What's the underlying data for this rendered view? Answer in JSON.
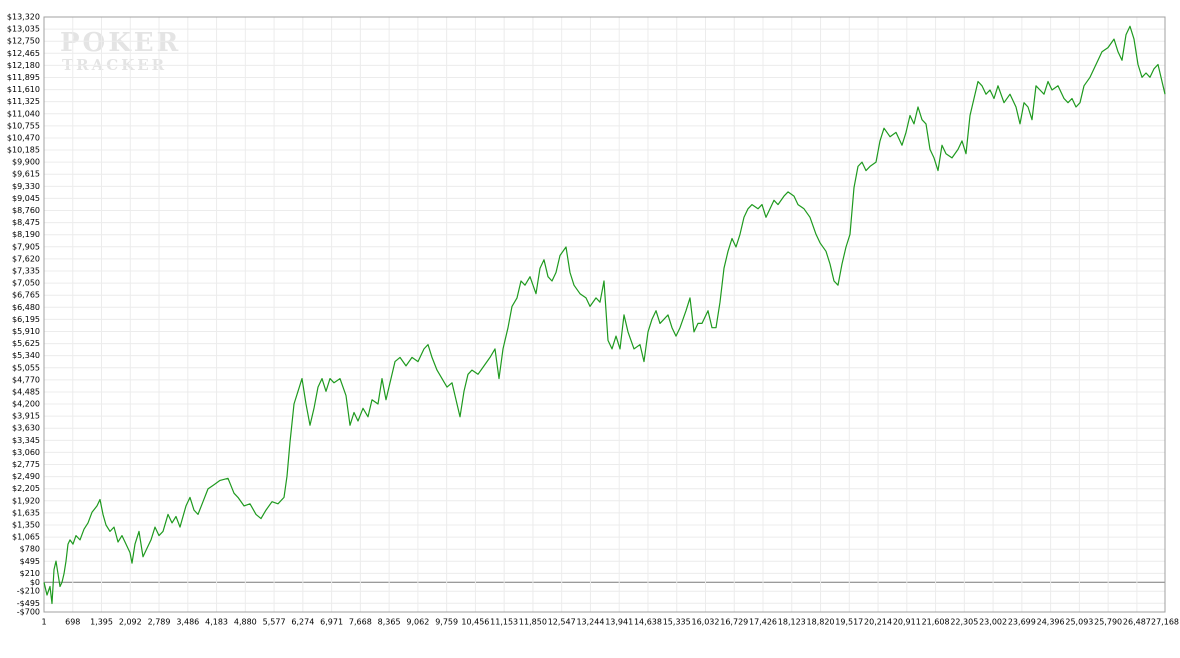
{
  "chart_data": {
    "type": "line",
    "watermark": [
      "POKER",
      "TRACKER"
    ],
    "color": "#1f9a1f",
    "grid": true,
    "xlim": [
      1,
      27168
    ],
    "ylim": [
      -700,
      13320
    ],
    "xticks": [
      1,
      698,
      {
        "value": 1395,
        "label": "1,395"
      },
      {
        "value": 2092,
        "label": "2,092"
      },
      {
        "value": 2789,
        "label": "2,789"
      },
      {
        "value": 3486,
        "label": "3,486"
      },
      {
        "value": 4183,
        "label": "4,183"
      },
      {
        "value": 4880,
        "label": "4,880"
      },
      {
        "value": 5577,
        "label": "5,577"
      },
      {
        "value": 6274,
        "label": "6,274"
      },
      {
        "value": 6971,
        "label": "6,971"
      },
      {
        "value": 7668,
        "label": "7,668"
      },
      {
        "value": 8365,
        "label": "8,365"
      },
      {
        "value": 9062,
        "label": "9,062"
      },
      {
        "value": 9759,
        "label": "9,759"
      },
      {
        "value": 10456,
        "label": "10,456"
      },
      {
        "value": 11153,
        "label": "11,153"
      },
      {
        "value": 11850,
        "label": "11,850"
      },
      {
        "value": 12547,
        "label": "12,547"
      },
      {
        "value": 13244,
        "label": "13,244"
      },
      {
        "value": 13941,
        "label": "13,941"
      },
      {
        "value": 14638,
        "label": "14,638"
      },
      {
        "value": 15335,
        "label": "15,335"
      },
      {
        "value": 16032,
        "label": "16,032"
      },
      {
        "value": 16729,
        "label": "16,729"
      },
      {
        "value": 17426,
        "label": "17,426"
      },
      {
        "value": 18123,
        "label": "18,123"
      },
      {
        "value": 18820,
        "label": "18,820"
      },
      {
        "value": 19517,
        "label": "19,517"
      },
      {
        "value": 20214,
        "label": "20,214"
      },
      {
        "value": 20911,
        "label": "20,911"
      },
      {
        "value": 21608,
        "label": "21,608"
      },
      {
        "value": 22305,
        "label": "22,305"
      },
      {
        "value": 23002,
        "label": "23,002"
      },
      {
        "value": 23699,
        "label": "23,699"
      },
      {
        "value": 24396,
        "label": "24,396"
      },
      {
        "value": 25093,
        "label": "25,093"
      },
      {
        "value": 25790,
        "label": "25,790"
      },
      {
        "value": 26487,
        "label": "26,487"
      },
      {
        "value": 27168,
        "label": "27,168"
      }
    ],
    "yticks": [
      {
        "value": -700,
        "label": "-$700"
      },
      {
        "value": -495,
        "label": "-$495"
      },
      {
        "value": -210,
        "label": "-$210"
      },
      {
        "value": 0,
        "label": "$0"
      },
      {
        "value": 210,
        "label": "$210"
      },
      {
        "value": 495,
        "label": "$495"
      },
      {
        "value": 780,
        "label": "$780"
      },
      {
        "value": 1065,
        "label": "$1,065"
      },
      {
        "value": 1350,
        "label": "$1,350"
      },
      {
        "value": 1635,
        "label": "$1,635"
      },
      {
        "value": 1920,
        "label": "$1,920"
      },
      {
        "value": 2205,
        "label": "$2,205"
      },
      {
        "value": 2490,
        "label": "$2,490"
      },
      {
        "value": 2775,
        "label": "$2,775"
      },
      {
        "value": 3060,
        "label": "$3,060"
      },
      {
        "value": 3345,
        "label": "$3,345"
      },
      {
        "value": 3630,
        "label": "$3,630"
      },
      {
        "value": 3915,
        "label": "$3,915"
      },
      {
        "value": 4200,
        "label": "$4,200"
      },
      {
        "value": 4485,
        "label": "$4,485"
      },
      {
        "value": 4770,
        "label": "$4,770"
      },
      {
        "value": 5055,
        "label": "$5,055"
      },
      {
        "value": 5340,
        "label": "$5,340"
      },
      {
        "value": 5625,
        "label": "$5,625"
      },
      {
        "value": 5910,
        "label": "$5,910"
      },
      {
        "value": 6195,
        "label": "$6,195"
      },
      {
        "value": 6480,
        "label": "$6,480"
      },
      {
        "value": 6765,
        "label": "$6,765"
      },
      {
        "value": 7050,
        "label": "$7,050"
      },
      {
        "value": 7335,
        "label": "$7,335"
      },
      {
        "value": 7620,
        "label": "$7,620"
      },
      {
        "value": 7905,
        "label": "$7,905"
      },
      {
        "value": 8190,
        "label": "$8,190"
      },
      {
        "value": 8475,
        "label": "$8,475"
      },
      {
        "value": 8760,
        "label": "$8,760"
      },
      {
        "value": 9045,
        "label": "$9,045"
      },
      {
        "value": 9330,
        "label": "$9,330"
      },
      {
        "value": 9615,
        "label": "$9,615"
      },
      {
        "value": 9900,
        "label": "$9,900"
      },
      {
        "value": 10185,
        "label": "$10,185"
      },
      {
        "value": 10470,
        "label": "$10,470"
      },
      {
        "value": 10755,
        "label": "$10,755"
      },
      {
        "value": 11040,
        "label": "$11,040"
      },
      {
        "value": 11325,
        "label": "$11,325"
      },
      {
        "value": 11610,
        "label": "$11,610"
      },
      {
        "value": 11895,
        "label": "$11,895"
      },
      {
        "value": 12180,
        "label": "$12,180"
      },
      {
        "value": 12465,
        "label": "$12,465"
      },
      {
        "value": 12750,
        "label": "$12,750"
      },
      {
        "value": 13035,
        "label": "$13,035"
      },
      {
        "value": 13320,
        "label": "$13,320"
      }
    ],
    "x": [
      1,
      73,
      146,
      195,
      243,
      292,
      340,
      389,
      437,
      486,
      534,
      583,
      631,
      704,
      776,
      873,
      970,
      1067,
      1164,
      1285,
      1358,
      1430,
      1503,
      1600,
      1697,
      1794,
      1891,
      1988,
      2085,
      2133,
      2206,
      2303,
      2400,
      2497,
      2594,
      2691,
      2788,
      2885,
      3006,
      3103,
      3200,
      3297,
      3442,
      3539,
      3636,
      3733,
      3854,
      3976,
      4121,
      4266,
      4460,
      4606,
      4702,
      4848,
      4993,
      5139,
      5260,
      5381,
      5527,
      5672,
      5817,
      5890,
      5963,
      6060,
      6157,
      6254,
      6350,
      6447,
      6544,
      6641,
      6738,
      6835,
      6932,
      7029,
      7174,
      7320,
      7417,
      7514,
      7611,
      7732,
      7853,
      7950,
      8095,
      8192,
      8289,
      8386,
      8507,
      8629,
      8774,
      8919,
      9065,
      9210,
      9307,
      9404,
      9525,
      9647,
      9768,
      9889,
      9986,
      10083,
      10180,
      10277,
      10374,
      10519,
      10664,
      10810,
      10931,
      11028,
      11125,
      11246,
      11343,
      11464,
      11561,
      11658,
      11779,
      11925,
      12022,
      12118,
      12215,
      12312,
      12409,
      12506,
      12652,
      12749,
      12846,
      12991,
      13136,
      13233,
      13378,
      13476,
      13573,
      13670,
      13767,
      13864,
      13961,
      14057,
      14154,
      14300,
      14445,
      14542,
      14639,
      14736,
      14833,
      14930,
      15027,
      15124,
      15221,
      15318,
      15414,
      15560,
      15657,
      15754,
      15851,
      15948,
      16093,
      16190,
      16287,
      16384,
      16481,
      16578,
      16675,
      16772,
      16869,
      16966,
      17062,
      17159,
      17305,
      17402,
      17499,
      17596,
      17693,
      17789,
      17935,
      18032,
      18177,
      18274,
      18420,
      18565,
      18710,
      18807,
      18953,
      19050,
      19147,
      19243,
      19340,
      19437,
      19534,
      19631,
      19728,
      19825,
      19922,
      20019,
      20164,
      20261,
      20358,
      20504,
      20649,
      20794,
      20891,
      20988,
      21085,
      21182,
      21279,
      21376,
      21473,
      21570,
      21667,
      21764,
      21861,
      22006,
      22151,
      22248,
      22345,
      22442,
      22539,
      22636,
      22733,
      22830,
      22927,
      23024,
      23121,
      23266,
      23412,
      23557,
      23654,
      23751,
      23848,
      23945,
      24042,
      24139,
      24236,
      24333,
      24430,
      24575,
      24721,
      24818,
      24915,
      25012,
      25108,
      25205,
      25351,
      25496,
      25642,
      25787,
      25932,
      26029,
      26126,
      26223,
      26320,
      26417,
      26514,
      26611,
      26708,
      26805,
      26902,
      26999,
      27096,
      27168
    ],
    "values": [
      0,
      -300,
      -100,
      -500,
      300,
      500,
      200,
      -100,
      0,
      200,
      500,
      900,
      1000,
      900,
      1100,
      1000,
      1250,
      1400,
      1650,
      1800,
      1950,
      1600,
      1350,
      1200,
      1300,
      950,
      1100,
      900,
      700,
      450,
      900,
      1200,
      600,
      800,
      1000,
      1300,
      1100,
      1200,
      1600,
      1400,
      1550,
      1300,
      1800,
      2000,
      1700,
      1600,
      1900,
      2200,
      2300,
      2400,
      2450,
      2100,
      2000,
      1800,
      1850,
      1600,
      1500,
      1700,
      1900,
      1850,
      2000,
      2500,
      3300,
      4200,
      4500,
      4800,
      4200,
      3700,
      4100,
      4600,
      4800,
      4500,
      4800,
      4700,
      4800,
      4400,
      3700,
      4000,
      3800,
      4100,
      3900,
      4300,
      4200,
      4800,
      4300,
      4700,
      5200,
      5300,
      5100,
      5300,
      5200,
      5500,
      5600,
      5300,
      5000,
      4800,
      4600,
      4700,
      4300,
      3900,
      4500,
      4900,
      5000,
      4900,
      5100,
      5300,
      5500,
      4800,
      5500,
      6000,
      6500,
      6700,
      7100,
      7000,
      7200,
      6800,
      7400,
      7600,
      7200,
      7100,
      7300,
      7700,
      7900,
      7300,
      7000,
      6800,
      6700,
      6500,
      6700,
      6600,
      7100,
      5700,
      5500,
      5800,
      5500,
      6300,
      5900,
      5500,
      5600,
      5200,
      5900,
      6200,
      6400,
      6100,
      6200,
      6300,
      6000,
      5800,
      6000,
      6400,
      6700,
      5900,
      6100,
      6100,
      6400,
      6000,
      6000,
      6600,
      7400,
      7800,
      8100,
      7900,
      8200,
      8600,
      8800,
      8900,
      8800,
      8900,
      8600,
      8800,
      9000,
      8900,
      9100,
      9200,
      9100,
      8900,
      8800,
      8600,
      8200,
      8000,
      7800,
      7500,
      7100,
      7000,
      7500,
      7900,
      8200,
      9300,
      9800,
      9900,
      9700,
      9800,
      9900,
      10400,
      10700,
      10500,
      10600,
      10300,
      10600,
      11000,
      10800,
      11200,
      10900,
      10800,
      10200,
      10000,
      9700,
      10300,
      10100,
      10000,
      10200,
      10400,
      10100,
      11000,
      11400,
      11800,
      11700,
      11500,
      11600,
      11400,
      11700,
      11300,
      11500,
      11200,
      10800,
      11300,
      11200,
      10900,
      11700,
      11600,
      11500,
      11800,
      11600,
      11700,
      11400,
      11300,
      11400,
      11200,
      11300,
      11700,
      11900,
      12200,
      12500,
      12600,
      12800,
      12500,
      12300,
      12900,
      13100,
      12800,
      12200,
      11900,
      12000,
      11900,
      12100,
      12200,
      11800,
      11500
    ]
  }
}
